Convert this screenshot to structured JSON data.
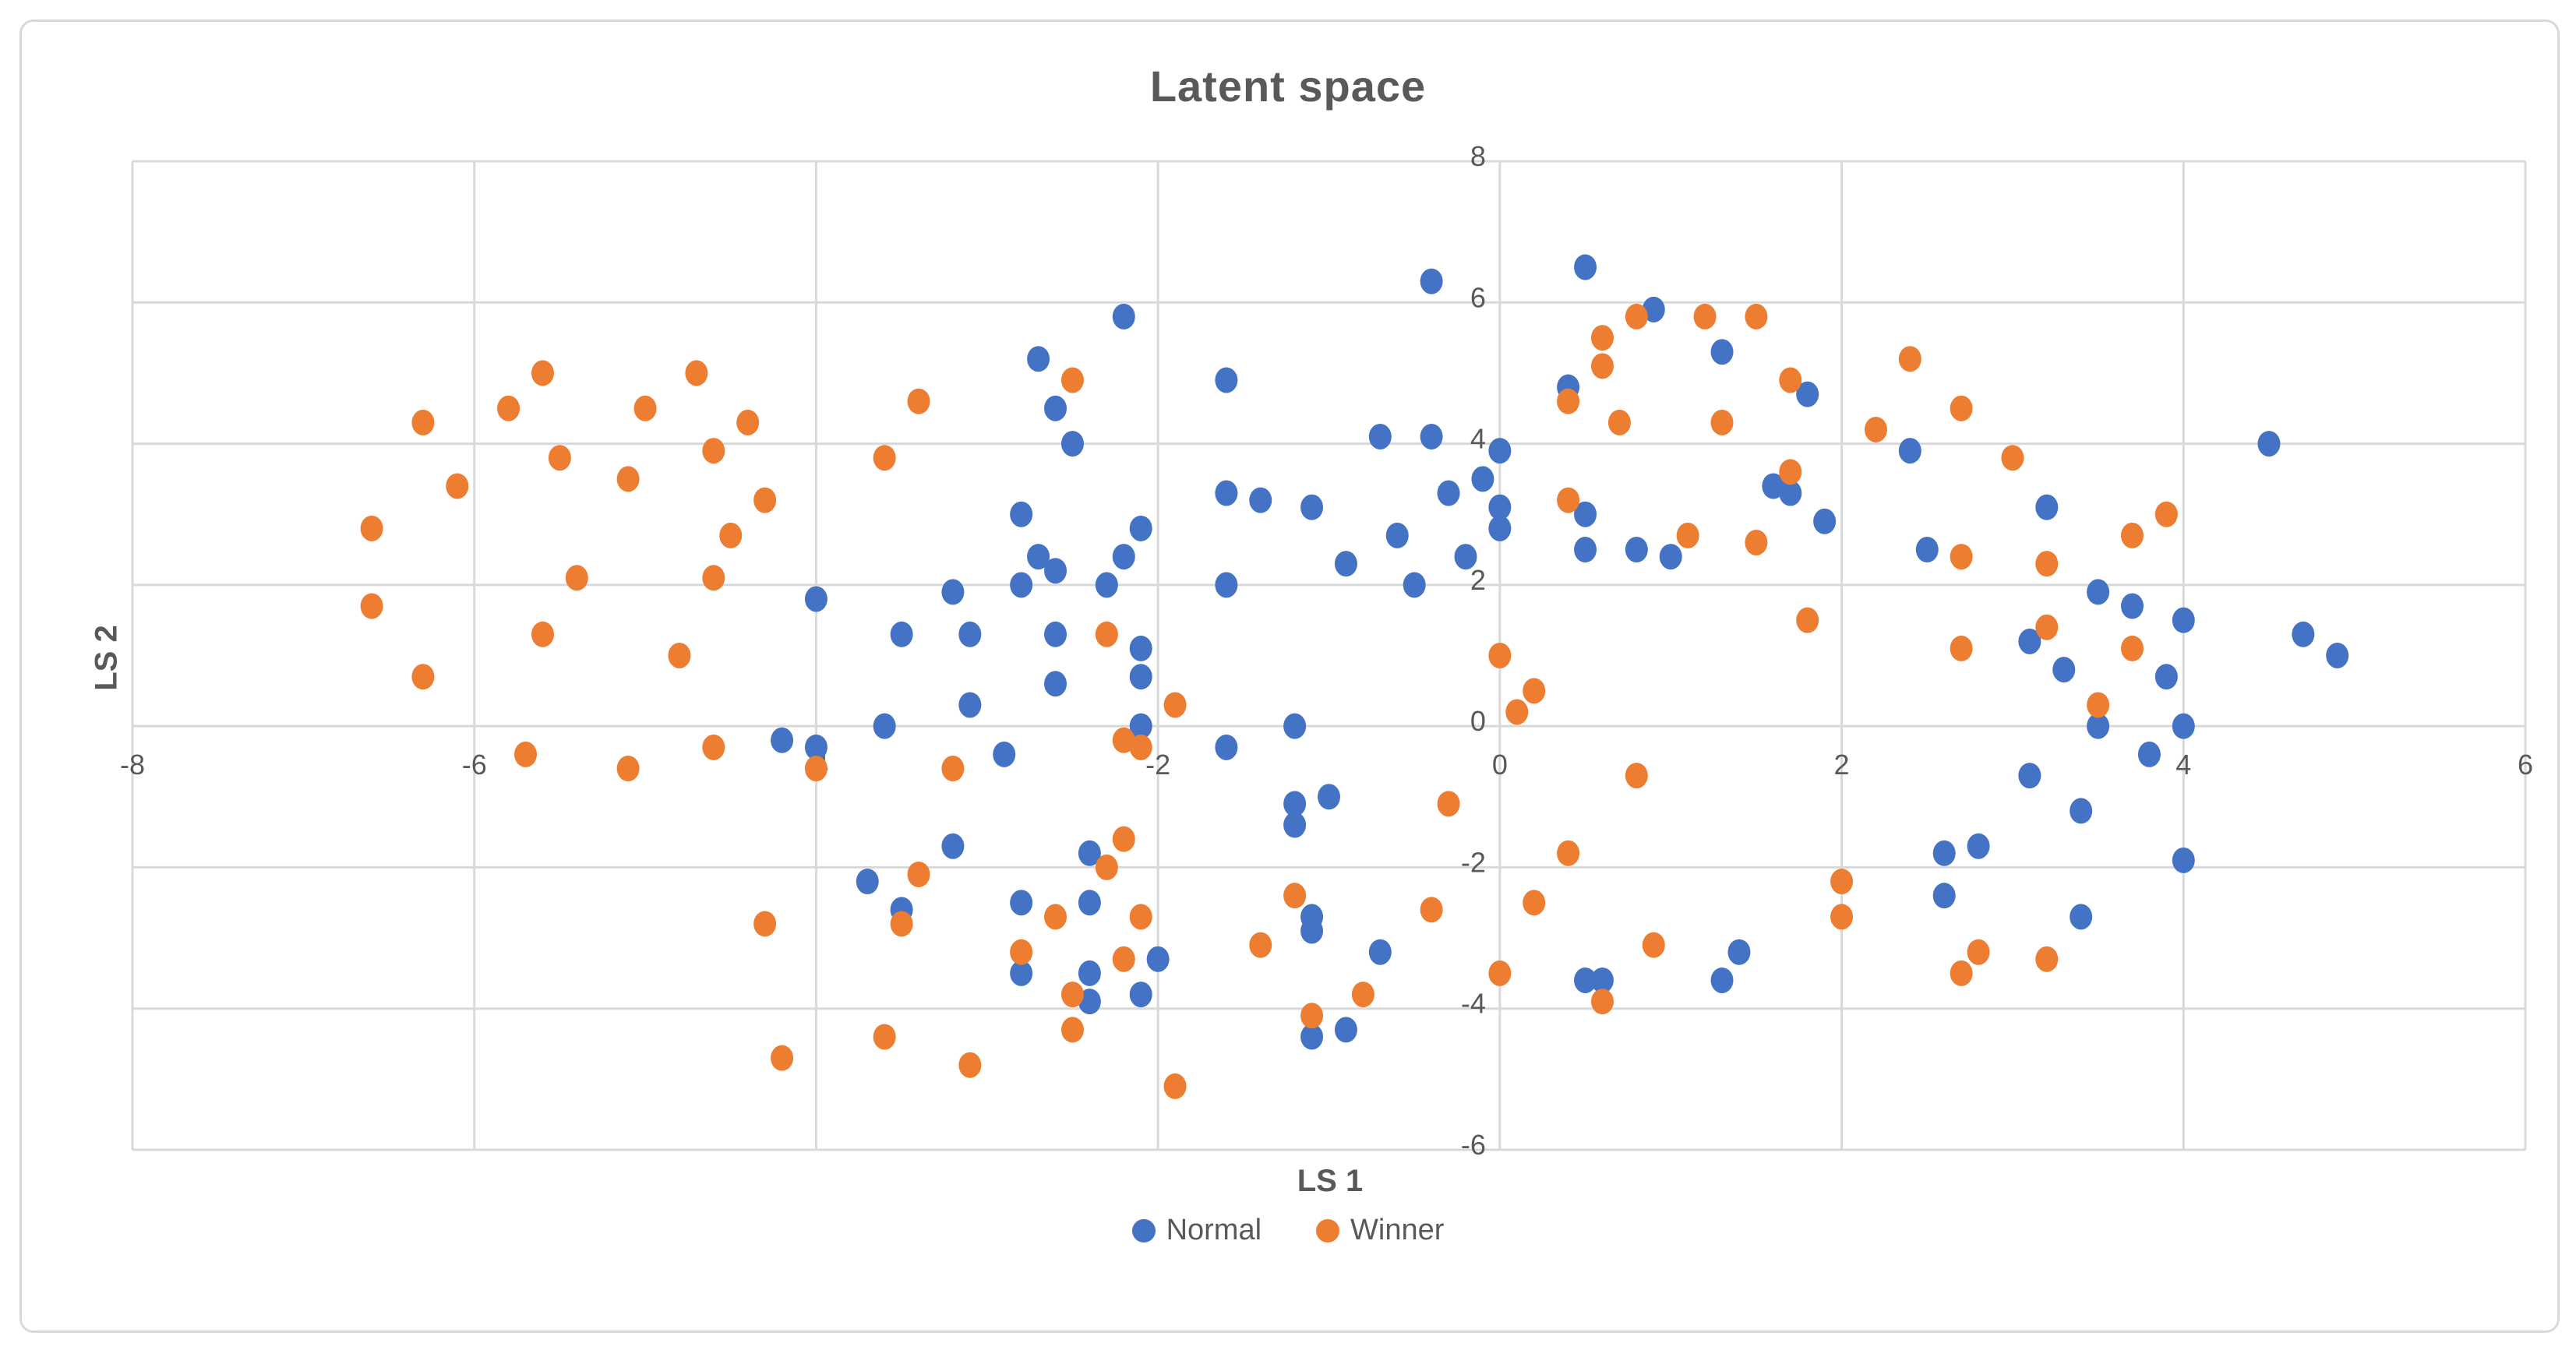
{
  "chart": {
    "title": "Latent space",
    "x_axis_label": "LS 1",
    "y_axis_label": "LS 2",
    "colors": {
      "normal": "#4472C4",
      "winner": "#ED7D31",
      "gridline": "#d9d9d9",
      "text": "#595959",
      "frame": "#d9d9d9"
    },
    "legend": [
      {
        "label": "Normal",
        "color": "#4472C4"
      },
      {
        "label": "Winner",
        "color": "#ED7D31"
      }
    ]
  },
  "chart_data": {
    "type": "scatter",
    "title": "Latent space",
    "xlabel": "LS 1",
    "ylabel": "LS 2",
    "xlim": [
      -8,
      6
    ],
    "ylim": [
      -6,
      8
    ],
    "x_ticks": [
      -8,
      -6,
      -4,
      -2,
      0,
      2,
      4,
      6
    ],
    "y_ticks": [
      8,
      6,
      4,
      2,
      0,
      -2,
      -4,
      -6
    ],
    "grid": true,
    "legend_position": "bottom",
    "series": [
      {
        "name": "Normal",
        "color": "#4472C4",
        "points": [
          [
            -0.4,
            6.3
          ],
          [
            0.5,
            6.5
          ],
          [
            0.9,
            5.9
          ],
          [
            -2.2,
            5.8
          ],
          [
            -2.7,
            5.2
          ],
          [
            1.3,
            5.3
          ],
          [
            -2.6,
            4.5
          ],
          [
            -1.6,
            4.9
          ],
          [
            -2.5,
            4.0
          ],
          [
            -0.7,
            4.1
          ],
          [
            -0.4,
            4.1
          ],
          [
            0.4,
            4.8
          ],
          [
            1.8,
            4.7
          ],
          [
            4.5,
            4.0
          ],
          [
            -2.8,
            3.0
          ],
          [
            -1.6,
            3.3
          ],
          [
            -1.4,
            3.2
          ],
          [
            -1.1,
            3.1
          ],
          [
            -2.1,
            2.8
          ],
          [
            -2.2,
            2.4
          ],
          [
            -2.7,
            2.4
          ],
          [
            -2.6,
            2.2
          ],
          [
            -3.2,
            1.9
          ],
          [
            -2.8,
            2.0
          ],
          [
            -2.3,
            2.0
          ],
          [
            -1.6,
            2.0
          ],
          [
            -0.5,
            2.0
          ],
          [
            -0.9,
            2.3
          ],
          [
            -0.6,
            2.7
          ],
          [
            0.0,
            3.9
          ],
          [
            -0.1,
            3.5
          ],
          [
            -0.3,
            3.3
          ],
          [
            0.0,
            3.1
          ],
          [
            0.0,
            2.8
          ],
          [
            -0.2,
            2.4
          ],
          [
            0.5,
            3.0
          ],
          [
            1.6,
            3.4
          ],
          [
            1.7,
            3.3
          ],
          [
            2.4,
            3.9
          ],
          [
            0.5,
            2.5
          ],
          [
            0.8,
            2.5
          ],
          [
            1.0,
            2.4
          ],
          [
            1.9,
            2.9
          ],
          [
            2.5,
            2.5
          ],
          [
            3.2,
            3.1
          ],
          [
            -4.0,
            1.8
          ],
          [
            -3.5,
            1.3
          ],
          [
            -3.1,
            1.3
          ],
          [
            -2.6,
            1.3
          ],
          [
            -2.1,
            1.1
          ],
          [
            -2.1,
            0.7
          ],
          [
            -2.6,
            0.6
          ],
          [
            -3.1,
            0.3
          ],
          [
            -3.6,
            0.0
          ],
          [
            -2.1,
            0.0
          ],
          [
            -1.2,
            0.0
          ],
          [
            -1.6,
            -0.3
          ],
          [
            -2.9,
            -0.4
          ],
          [
            -1.2,
            -1.1
          ],
          [
            -1.0,
            -1.0
          ],
          [
            -1.2,
            -1.4
          ],
          [
            -3.2,
            -1.7
          ],
          [
            -2.4,
            -1.8
          ],
          [
            -4.2,
            -0.2
          ],
          [
            -4.0,
            -0.3
          ],
          [
            3.1,
            1.2
          ],
          [
            3.5,
            1.9
          ],
          [
            3.7,
            1.7
          ],
          [
            4.0,
            1.5
          ],
          [
            3.3,
            0.8
          ],
          [
            3.9,
            0.7
          ],
          [
            3.5,
            0.0
          ],
          [
            4.0,
            0.0
          ],
          [
            3.8,
            -0.4
          ],
          [
            3.1,
            -0.7
          ],
          [
            3.4,
            -1.2
          ],
          [
            2.6,
            -1.8
          ],
          [
            2.8,
            -1.7
          ],
          [
            4.7,
            1.3
          ],
          [
            4.9,
            1.0
          ],
          [
            -3.7,
            -2.2
          ],
          [
            -3.5,
            -2.6
          ],
          [
            -2.8,
            -2.5
          ],
          [
            -2.4,
            -2.5
          ],
          [
            -2.8,
            -3.5
          ],
          [
            -2.4,
            -3.5
          ],
          [
            -2.4,
            -3.9
          ],
          [
            -2.1,
            -3.8
          ],
          [
            -2.0,
            -3.3
          ],
          [
            -1.1,
            -2.7
          ],
          [
            -1.1,
            -2.9
          ],
          [
            -0.7,
            -3.2
          ],
          [
            -1.1,
            -4.4
          ],
          [
            -0.9,
            -4.3
          ],
          [
            0.5,
            -3.6
          ],
          [
            0.6,
            -3.6
          ],
          [
            1.4,
            -3.2
          ],
          [
            1.3,
            -3.6
          ],
          [
            2.6,
            -2.4
          ],
          [
            3.4,
            -2.7
          ],
          [
            4.0,
            -1.9
          ]
        ]
      },
      {
        "name": "Winner",
        "color": "#ED7D31",
        "points": [
          [
            -6.3,
            4.3
          ],
          [
            -5.8,
            4.5
          ],
          [
            -5.6,
            5.0
          ],
          [
            -5.0,
            4.5
          ],
          [
            -4.7,
            5.0
          ],
          [
            -4.4,
            4.3
          ],
          [
            -5.5,
            3.8
          ],
          [
            -4.6,
            3.9
          ],
          [
            -6.1,
            3.4
          ],
          [
            -5.1,
            3.5
          ],
          [
            -6.6,
            2.8
          ],
          [
            -4.3,
            3.2
          ],
          [
            -4.5,
            2.7
          ],
          [
            -5.4,
            2.1
          ],
          [
            -4.6,
            2.1
          ],
          [
            -6.6,
            1.7
          ],
          [
            -5.6,
            1.3
          ],
          [
            -6.3,
            0.7
          ],
          [
            -4.8,
            1.0
          ],
          [
            -5.7,
            -0.4
          ],
          [
            -5.1,
            -0.6
          ],
          [
            -4.6,
            -0.3
          ],
          [
            -4.0,
            -0.6
          ],
          [
            -3.4,
            4.6
          ],
          [
            -2.5,
            4.9
          ],
          [
            -3.6,
            3.8
          ],
          [
            -2.3,
            1.3
          ],
          [
            -1.9,
            0.3
          ],
          [
            -2.2,
            -0.2
          ],
          [
            -2.1,
            -0.3
          ],
          [
            -3.2,
            -0.6
          ],
          [
            -2.2,
            -1.6
          ],
          [
            -0.3,
            -1.1
          ],
          [
            0.0,
            1.0
          ],
          [
            0.2,
            0.5
          ],
          [
            0.1,
            0.2
          ],
          [
            0.8,
            -0.7
          ],
          [
            0.4,
            -1.8
          ],
          [
            0.8,
            5.8
          ],
          [
            1.2,
            5.8
          ],
          [
            1.5,
            5.8
          ],
          [
            0.6,
            5.5
          ],
          [
            0.6,
            5.1
          ],
          [
            0.4,
            4.6
          ],
          [
            0.7,
            4.3
          ],
          [
            1.3,
            4.3
          ],
          [
            1.7,
            4.9
          ],
          [
            2.4,
            5.2
          ],
          [
            2.7,
            4.5
          ],
          [
            2.2,
            4.2
          ],
          [
            3.0,
            3.8
          ],
          [
            1.7,
            3.6
          ],
          [
            0.4,
            3.2
          ],
          [
            1.1,
            2.7
          ],
          [
            1.5,
            2.6
          ],
          [
            2.7,
            2.4
          ],
          [
            3.2,
            2.3
          ],
          [
            3.9,
            3.0
          ],
          [
            3.7,
            2.7
          ],
          [
            1.8,
            1.5
          ],
          [
            2.7,
            1.1
          ],
          [
            3.2,
            1.4
          ],
          [
            3.7,
            1.1
          ],
          [
            3.5,
            0.3
          ],
          [
            -4.3,
            -2.8
          ],
          [
            -4.2,
            -4.7
          ],
          [
            -3.4,
            -2.1
          ],
          [
            -3.5,
            -2.8
          ],
          [
            -2.6,
            -2.7
          ],
          [
            -2.1,
            -2.7
          ],
          [
            -2.3,
            -2.0
          ],
          [
            -2.8,
            -3.2
          ],
          [
            -2.2,
            -3.3
          ],
          [
            -2.5,
            -3.8
          ],
          [
            -1.2,
            -2.4
          ],
          [
            -1.4,
            -3.1
          ],
          [
            -0.4,
            -2.6
          ],
          [
            -0.8,
            -3.8
          ],
          [
            -1.1,
            -4.1
          ],
          [
            -2.5,
            -4.3
          ],
          [
            -3.6,
            -4.4
          ],
          [
            -3.1,
            -4.8
          ],
          [
            -1.9,
            -5.1
          ],
          [
            0.2,
            -2.5
          ],
          [
            0.0,
            -3.5
          ],
          [
            0.9,
            -3.1
          ],
          [
            0.6,
            -3.9
          ],
          [
            2.0,
            -2.2
          ],
          [
            2.0,
            -2.7
          ],
          [
            2.8,
            -3.2
          ],
          [
            2.7,
            -3.5
          ],
          [
            3.2,
            -3.3
          ]
        ]
      }
    ]
  }
}
